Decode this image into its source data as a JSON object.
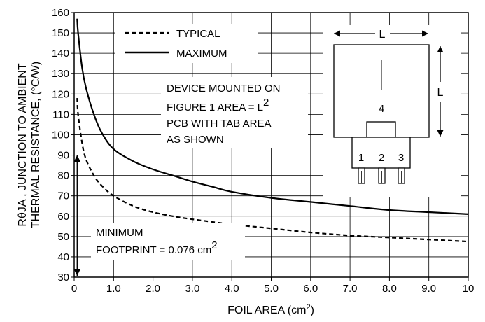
{
  "chart_data": {
    "type": "line",
    "xlabel": "FOIL AREA (cm",
    "xlabel_sup": "2",
    "xlabel_tail": ")",
    "ylabel_line1": "RθJA , JUNCTION TO AMBIENT",
    "ylabel_line2": "THERMAL RESISTANCE, (°C/W)",
    "xlim": [
      0,
      10
    ],
    "ylim": [
      30,
      160
    ],
    "grid": true,
    "x_ticks": [
      0,
      1,
      2,
      3,
      4,
      5,
      6,
      7,
      8,
      9,
      10
    ],
    "x_tick_labels": [
      "0",
      "1.0",
      "2.0",
      "3.0",
      "4.0",
      "5.0",
      "6.0",
      "7.0",
      "8.0",
      "9.0",
      "10"
    ],
    "y_ticks": [
      30,
      40,
      50,
      60,
      70,
      80,
      90,
      100,
      110,
      120,
      130,
      140,
      150,
      160
    ],
    "y_tick_labels": [
      "30",
      "40",
      "50",
      "60",
      "70",
      "80",
      "90",
      "100",
      "110",
      "120",
      "130",
      "140",
      "150",
      "160"
    ],
    "legend_position": "top-left",
    "series": [
      {
        "name": "TYPICAL",
        "style": "dashed",
        "x": [
          0.076,
          0.1,
          0.2,
          0.3,
          0.5,
          0.7,
          1.0,
          1.5,
          2.0,
          2.5,
          3.0,
          4.0,
          5.0,
          6.0,
          7.0,
          8.0,
          9.0,
          10.0
        ],
        "y": [
          118,
          110,
          96,
          88,
          80,
          75,
          70,
          65,
          62,
          60,
          58.5,
          56,
          54,
          52,
          50.5,
          49.5,
          48.5,
          47.5
        ]
      },
      {
        "name": "MAXIMUM",
        "style": "solid",
        "x": [
          0.076,
          0.1,
          0.2,
          0.3,
          0.5,
          0.7,
          1.0,
          1.5,
          2.0,
          2.5,
          3.0,
          3.5,
          4.0,
          5.0,
          6.0,
          7.0,
          8.0,
          9.0,
          10.0
        ],
        "y": [
          157,
          150,
          133,
          123,
          110,
          101,
          93,
          87,
          83,
          80,
          77,
          74.5,
          72,
          69,
          67,
          65,
          63,
          62,
          61
        ]
      }
    ],
    "annotations": {
      "device_line1": "DEVICE MOUNTED ON",
      "device_line2a": "FIGURE 1 AREA = L",
      "device_line2_sup": "2",
      "device_line3": "PCB WITH TAB AREA",
      "device_line4": "AS SHOWN",
      "minimum_line1": "MINIMUM",
      "minimum_line2a": "FOOTPRINT = 0.076 cm",
      "minimum_line2_sup": "2",
      "minimum_x": 0.076
    },
    "package_diagram": {
      "dimension_label_top": "L",
      "dimension_label_side": "L",
      "tab_pin": "4",
      "pins": [
        "1",
        "2",
        "3"
      ]
    }
  }
}
